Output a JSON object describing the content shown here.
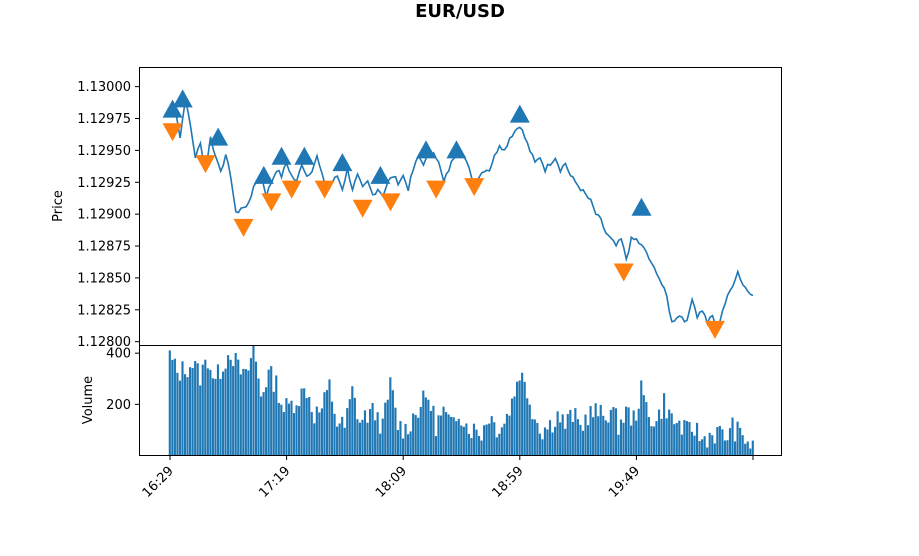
{
  "chart_data": [
    {
      "type": "line",
      "title": "EUR/USD",
      "ylabel": "Price",
      "ylim": [
        1.12797,
        1.13015
      ],
      "yticks": [
        "1.12800",
        "1.12825",
        "1.12850",
        "1.12875",
        "1.12900",
        "1.12925",
        "1.12950",
        "1.12975",
        "1.13000"
      ],
      "grid": false,
      "line_color": "#1f77b4",
      "buy_color": "#1f77b4",
      "sell_color": "#ff7f0e",
      "price_keypoints": [
        [
          0,
          1.1298
        ],
        [
          2,
          1.12985
        ],
        [
          4,
          1.1296
        ],
        [
          6,
          1.1299
        ],
        [
          8,
          1.1297
        ],
        [
          10,
          1.12945
        ],
        [
          12,
          1.12955
        ],
        [
          14,
          1.12935
        ],
        [
          16,
          1.1296
        ],
        [
          18,
          1.12945
        ],
        [
          20,
          1.12935
        ],
        [
          22,
          1.12945
        ],
        [
          24,
          1.1293
        ],
        [
          26,
          1.129
        ],
        [
          28,
          1.12905
        ],
        [
          30,
          1.12905
        ],
        [
          32,
          1.12915
        ],
        [
          34,
          1.12925
        ],
        [
          36,
          1.1293
        ],
        [
          38,
          1.12915
        ],
        [
          40,
          1.12925
        ],
        [
          42,
          1.12935
        ],
        [
          44,
          1.1293
        ],
        [
          46,
          1.1294
        ],
        [
          48,
          1.1293
        ],
        [
          50,
          1.12925
        ],
        [
          52,
          1.1294
        ],
        [
          54,
          1.1293
        ],
        [
          56,
          1.12935
        ],
        [
          58,
          1.12945
        ],
        [
          60,
          1.1293
        ],
        [
          62,
          1.1292
        ],
        [
          64,
          1.12925
        ],
        [
          66,
          1.1293
        ],
        [
          68,
          1.1292
        ],
        [
          70,
          1.12935
        ],
        [
          72,
          1.1292
        ],
        [
          74,
          1.1293
        ],
        [
          76,
          1.1292
        ],
        [
          78,
          1.12925
        ],
        [
          80,
          1.12915
        ],
        [
          82,
          1.1292
        ],
        [
          84,
          1.12915
        ],
        [
          86,
          1.12925
        ],
        [
          88,
          1.1293
        ],
        [
          90,
          1.12925
        ],
        [
          92,
          1.1293
        ],
        [
          94,
          1.1292
        ],
        [
          96,
          1.12935
        ],
        [
          98,
          1.12945
        ],
        [
          100,
          1.1294
        ],
        [
          102,
          1.12945
        ],
        [
          104,
          1.1295
        ],
        [
          106,
          1.1294
        ],
        [
          108,
          1.12925
        ],
        [
          110,
          1.12935
        ],
        [
          112,
          1.12945
        ],
        [
          114,
          1.1295
        ],
        [
          116,
          1.12945
        ],
        [
          118,
          1.12935
        ],
        [
          120,
          1.12925
        ],
        [
          122,
          1.1293
        ],
        [
          124,
          1.12935
        ],
        [
          126,
          1.12935
        ],
        [
          128,
          1.12945
        ],
        [
          130,
          1.12955
        ],
        [
          132,
          1.1295
        ],
        [
          134,
          1.1296
        ],
        [
          136,
          1.12965
        ],
        [
          138,
          1.1297
        ],
        [
          140,
          1.1296
        ],
        [
          142,
          1.1295
        ],
        [
          144,
          1.1294
        ],
        [
          146,
          1.12945
        ],
        [
          148,
          1.12935
        ],
        [
          150,
          1.1294
        ],
        [
          152,
          1.12945
        ],
        [
          154,
          1.12935
        ],
        [
          156,
          1.1294
        ],
        [
          158,
          1.1293
        ],
        [
          160,
          1.12925
        ],
        [
          162,
          1.1292
        ],
        [
          164,
          1.12915
        ],
        [
          166,
          1.1291
        ],
        [
          168,
          1.129
        ],
        [
          170,
          1.12895
        ],
        [
          172,
          1.12885
        ],
        [
          174,
          1.1288
        ],
        [
          176,
          1.12875
        ],
        [
          178,
          1.1288
        ],
        [
          180,
          1.12865
        ],
        [
          182,
          1.1288
        ],
        [
          184,
          1.1288
        ],
        [
          186,
          1.12875
        ],
        [
          188,
          1.1287
        ],
        [
          190,
          1.1286
        ],
        [
          192,
          1.12855
        ],
        [
          194,
          1.12845
        ],
        [
          196,
          1.12835
        ],
        [
          198,
          1.12815
        ],
        [
          200,
          1.1282
        ],
        [
          202,
          1.1282
        ],
        [
          204,
          1.12815
        ],
        [
          206,
          1.12835
        ],
        [
          208,
          1.1282
        ],
        [
          210,
          1.12825
        ],
        [
          212,
          1.12815
        ],
        [
          214,
          1.1282
        ],
        [
          216,
          1.1281
        ],
        [
          218,
          1.12825
        ],
        [
          220,
          1.12835
        ],
        [
          222,
          1.12845
        ],
        [
          224,
          1.12855
        ],
        [
          226,
          1.12845
        ],
        [
          228,
          1.1284
        ],
        [
          230,
          1.12838
        ]
      ],
      "buy_signals": [
        [
          1,
          1.12982
        ],
        [
          5,
          1.1299
        ],
        [
          19,
          1.1296
        ],
        [
          37,
          1.1293
        ],
        [
          44,
          1.12945
        ],
        [
          53,
          1.12945
        ],
        [
          68,
          1.1294
        ],
        [
          83,
          1.1293
        ],
        [
          101,
          1.1295
        ],
        [
          113,
          1.1295
        ],
        [
          138,
          1.12978
        ],
        [
          186,
          1.12905
        ]
      ],
      "sell_signals": [
        [
          1,
          1.12965
        ],
        [
          14,
          1.1294
        ],
        [
          29,
          1.1289
        ],
        [
          40,
          1.1291
        ],
        [
          48,
          1.1292
        ],
        [
          61,
          1.1292
        ],
        [
          76,
          1.12905
        ],
        [
          87,
          1.1291
        ],
        [
          105,
          1.1292
        ],
        [
          120,
          1.12922
        ],
        [
          179,
          1.12855
        ],
        [
          215,
          1.1281
        ]
      ]
    },
    {
      "type": "bar",
      "ylabel": "Volume",
      "ylim": [
        0,
        430
      ],
      "yticks": [
        "200",
        "400"
      ],
      "bar_color": "#1f77b4",
      "xticks": [
        {
          "index": 0,
          "label": "16:29"
        },
        {
          "index": 46,
          "label": "17:19"
        },
        {
          "index": 92,
          "label": "18:09"
        },
        {
          "index": 138,
          "label": "18:59"
        },
        {
          "index": 184,
          "label": "19:49"
        },
        {
          "index": 230,
          "label": ""
        }
      ],
      "volume_keypoints": [
        [
          0,
          390
        ],
        [
          3,
          320
        ],
        [
          6,
          340
        ],
        [
          9,
          360
        ],
        [
          12,
          310
        ],
        [
          15,
          380
        ],
        [
          18,
          290
        ],
        [
          21,
          360
        ],
        [
          24,
          410
        ],
        [
          27,
          340
        ],
        [
          30,
          300
        ],
        [
          33,
          420
        ],
        [
          36,
          240
        ],
        [
          39,
          320
        ],
        [
          42,
          280
        ],
        [
          45,
          180
        ],
        [
          48,
          200
        ],
        [
          51,
          230
        ],
        [
          54,
          260
        ],
        [
          57,
          160
        ],
        [
          60,
          180
        ],
        [
          63,
          270
        ],
        [
          66,
          130
        ],
        [
          69,
          110
        ],
        [
          72,
          250
        ],
        [
          75,
          130
        ],
        [
          78,
          160
        ],
        [
          81,
          170
        ],
        [
          84,
          110
        ],
        [
          87,
          280
        ],
        [
          90,
          120
        ],
        [
          93,
          100
        ],
        [
          96,
          150
        ],
        [
          99,
          200
        ],
        [
          102,
          230
        ],
        [
          105,
          120
        ],
        [
          108,
          170
        ],
        [
          111,
          110
        ],
        [
          114,
          180
        ],
        [
          117,
          120
        ],
        [
          120,
          100
        ],
        [
          123,
          90
        ],
        [
          126,
          160
        ],
        [
          129,
          110
        ],
        [
          132,
          130
        ],
        [
          135,
          210
        ],
        [
          138,
          330
        ],
        [
          141,
          250
        ],
        [
          144,
          150
        ],
        [
          147,
          100
        ],
        [
          150,
          120
        ],
        [
          153,
          160
        ],
        [
          156,
          120
        ],
        [
          159,
          160
        ],
        [
          162,
          110
        ],
        [
          165,
          160
        ],
        [
          168,
          170
        ],
        [
          171,
          150
        ],
        [
          174,
          180
        ],
        [
          177,
          120
        ],
        [
          180,
          170
        ],
        [
          183,
          140
        ],
        [
          186,
          250
        ],
        [
          189,
          160
        ],
        [
          192,
          130
        ],
        [
          195,
          210
        ],
        [
          198,
          140
        ],
        [
          201,
          120
        ],
        [
          204,
          90
        ],
        [
          207,
          110
        ],
        [
          210,
          60
        ],
        [
          213,
          80
        ],
        [
          216,
          90
        ],
        [
          219,
          70
        ],
        [
          222,
          110
        ],
        [
          225,
          80
        ],
        [
          228,
          60
        ],
        [
          230,
          20
        ]
      ]
    }
  ]
}
